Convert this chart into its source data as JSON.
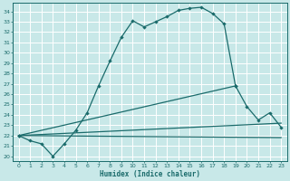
{
  "xlabel": "Humidex (Indice chaleur)",
  "bg_color": "#c8e8e8",
  "grid_color": "#ffffff",
  "line_color": "#1a6b6b",
  "xlim": [
    -0.5,
    23.5
  ],
  "ylim": [
    19.5,
    34.8
  ],
  "yticks": [
    20,
    21,
    22,
    23,
    24,
    25,
    26,
    27,
    28,
    29,
    30,
    31,
    32,
    33,
    34
  ],
  "xticks": [
    0,
    1,
    2,
    3,
    4,
    5,
    6,
    7,
    8,
    9,
    10,
    11,
    12,
    13,
    14,
    15,
    16,
    17,
    18,
    19,
    20,
    21,
    22,
    23
  ],
  "curve1_x": [
    0,
    1,
    2,
    3,
    4,
    5,
    6,
    7,
    8,
    9,
    10,
    11,
    12,
    13,
    14,
    15,
    16,
    17,
    18,
    19
  ],
  "curve1_y": [
    22.0,
    21.5,
    21.2,
    20.0,
    21.2,
    22.5,
    24.2,
    26.8,
    29.2,
    31.5,
    33.1,
    32.5,
    33.0,
    33.5,
    34.1,
    34.3,
    34.4,
    33.8,
    32.8,
    26.8
  ],
  "curve2_x": [
    0,
    19,
    20,
    21,
    22,
    23
  ],
  "curve2_y": [
    22.0,
    26.8,
    24.8,
    23.5,
    24.2,
    22.8
  ],
  "line3_x": [
    0,
    23
  ],
  "line3_y": [
    22.0,
    23.2
  ],
  "line4_x": [
    0,
    23
  ],
  "line4_y": [
    22.0,
    21.8
  ]
}
